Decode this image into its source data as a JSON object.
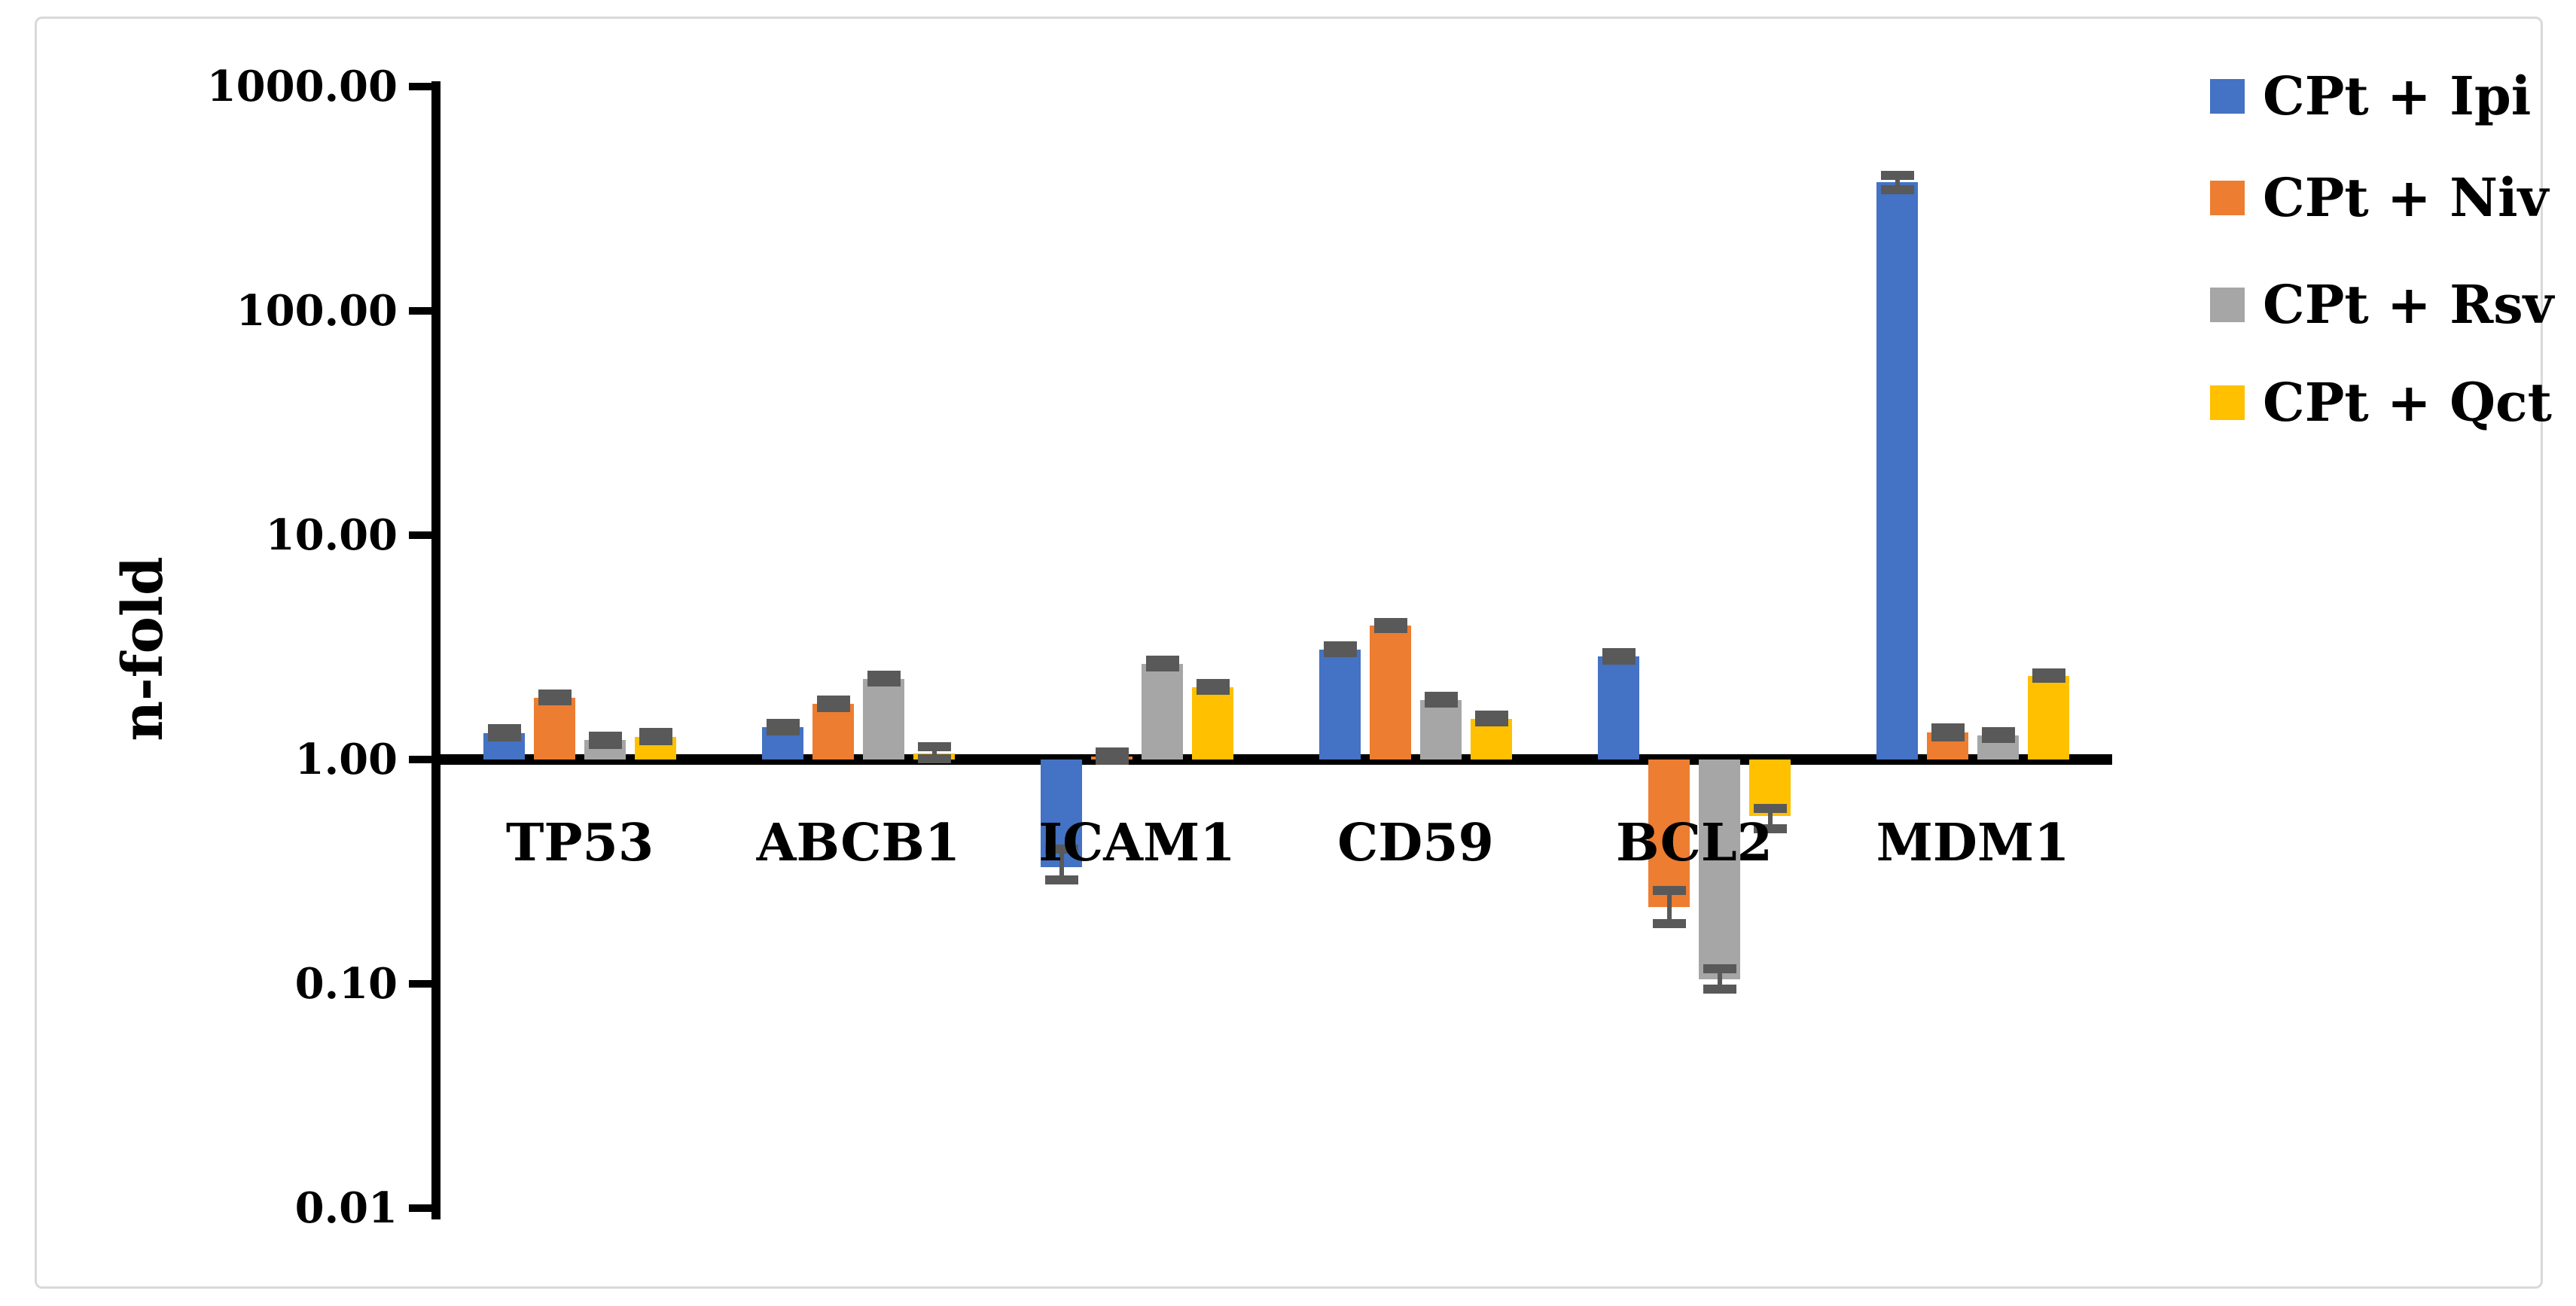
{
  "figure": {
    "background": "#ffffff",
    "border_color": "#d9d9d9"
  },
  "colors": {
    "axis": "#000000",
    "error_bar": "#595959"
  },
  "chart_data": {
    "type": "bar",
    "scale": "log10",
    "title": "",
    "xlabel": "",
    "ylabel": "n-fold",
    "ylim": [
      0.01,
      1000
    ],
    "baseline": 1.0,
    "grid": false,
    "legend_position": "right-top",
    "yticks": [
      "1000.00",
      "100.00",
      "10.00",
      "1.00",
      "0.10",
      "0.01"
    ],
    "categories": [
      "TP53",
      "ABCB1",
      "ICAM1",
      "CD59",
      "BCL2",
      "MDM1"
    ],
    "series": [
      {
        "name": "CPt + Ipi",
        "color": "#4472C4",
        "values": [
          1.31,
          1.39,
          0.33,
          3.1,
          2.88,
          375
        ],
        "err_up": [
          0.06,
          0.06,
          0.07,
          0.12,
          0.12,
          28
        ],
        "err_down": [
          0.05,
          0.05,
          0.04,
          0.1,
          0.1,
          28
        ]
      },
      {
        "name": "CPt + Niv",
        "color": "#ED7D31",
        "values": [
          1.88,
          1.77,
          1.03,
          3.95,
          0.22,
          1.32
        ],
        "err_up": [
          0.08,
          0.07,
          0.05,
          0.12,
          0.04,
          0.06
        ],
        "err_down": [
          0.06,
          0.06,
          0.04,
          0.1,
          0.035,
          0.06
        ]
      },
      {
        "name": "CPt + Rsv",
        "color": "#A6A6A6",
        "values": [
          1.22,
          2.29,
          2.67,
          1.84,
          0.105,
          1.28
        ],
        "err_up": [
          0.05,
          0.08,
          0.1,
          0.07,
          0.012,
          0.05
        ],
        "err_down": [
          0.05,
          0.07,
          0.08,
          0.06,
          0.01,
          0.04
        ]
      },
      {
        "name": "CPt + Qct",
        "color": "#FFC000",
        "values": [
          1.26,
          1.06,
          2.1,
          1.52,
          0.56,
          2.36
        ],
        "err_up": [
          0.06,
          0.08,
          0.08,
          0.06,
          0.045,
          0.07
        ],
        "err_down": [
          0.05,
          0.05,
          0.07,
          0.05,
          0.07,
          0.06
        ]
      }
    ]
  }
}
